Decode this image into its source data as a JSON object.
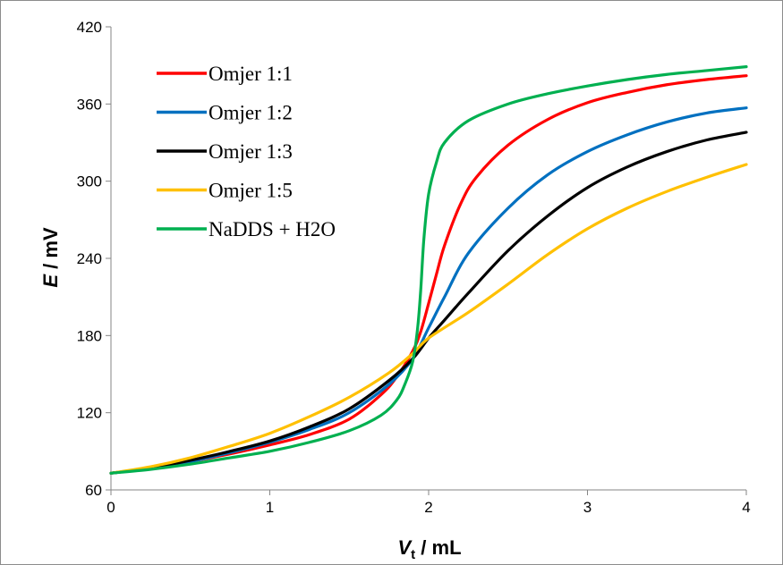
{
  "chart_data": {
    "type": "line",
    "xlabel": {
      "main": "V",
      "sub": "t",
      "unit": " / mL"
    },
    "ylabel": {
      "main": "E",
      "unit": " / mV"
    },
    "xlim": [
      0,
      4
    ],
    "ylim": [
      60,
      420
    ],
    "xticks": [
      0,
      1,
      2,
      3,
      4
    ],
    "yticks": [
      60,
      120,
      180,
      240,
      300,
      360,
      420
    ],
    "grid": false,
    "legend_position": "top-left",
    "series": [
      {
        "name": "Omjer 1:1",
        "color": "#ff0000",
        "points": [
          [
            0,
            73
          ],
          [
            0.25,
            77
          ],
          [
            0.5,
            82
          ],
          [
            0.75,
            88
          ],
          [
            1,
            95
          ],
          [
            1.25,
            103
          ],
          [
            1.5,
            115
          ],
          [
            1.7,
            134
          ],
          [
            1.8,
            148
          ],
          [
            1.9,
            168
          ],
          [
            1.95,
            183
          ],
          [
            2.0,
            205
          ],
          [
            2.05,
            228
          ],
          [
            2.1,
            250
          ],
          [
            2.2,
            282
          ],
          [
            2.3,
            303
          ],
          [
            2.5,
            328
          ],
          [
            2.75,
            348
          ],
          [
            3.0,
            361
          ],
          [
            3.25,
            369
          ],
          [
            3.5,
            375
          ],
          [
            3.75,
            379
          ],
          [
            4.0,
            382
          ]
        ]
      },
      {
        "name": "Omjer 1:2",
        "color": "#0070c0",
        "points": [
          [
            0,
            73
          ],
          [
            0.25,
            77
          ],
          [
            0.5,
            82
          ],
          [
            0.75,
            89
          ],
          [
            1,
            97
          ],
          [
            1.25,
            107
          ],
          [
            1.5,
            120
          ],
          [
            1.75,
            142
          ],
          [
            1.9,
            162
          ],
          [
            2.0,
            186
          ],
          [
            2.1,
            210
          ],
          [
            2.25,
            244
          ],
          [
            2.5,
            279
          ],
          [
            2.75,
            305
          ],
          [
            3.0,
            323
          ],
          [
            3.25,
            336
          ],
          [
            3.5,
            346
          ],
          [
            3.75,
            353
          ],
          [
            4.0,
            357
          ]
        ]
      },
      {
        "name": "Omjer 1:3",
        "color": "#000000",
        "points": [
          [
            0,
            73
          ],
          [
            0.25,
            77
          ],
          [
            0.5,
            83
          ],
          [
            0.75,
            90
          ],
          [
            1,
            98
          ],
          [
            1.25,
            109
          ],
          [
            1.5,
            123
          ],
          [
            1.75,
            145
          ],
          [
            1.9,
            162
          ],
          [
            2.0,
            178
          ],
          [
            2.1,
            192
          ],
          [
            2.25,
            213
          ],
          [
            2.5,
            246
          ],
          [
            2.75,
            273
          ],
          [
            3.0,
            295
          ],
          [
            3.25,
            311
          ],
          [
            3.5,
            323
          ],
          [
            3.75,
            332
          ],
          [
            4.0,
            338
          ]
        ]
      },
      {
        "name": "Omjer 1:5",
        "color": "#ffc000",
        "points": [
          [
            0,
            73
          ],
          [
            0.25,
            78
          ],
          [
            0.5,
            85
          ],
          [
            0.75,
            94
          ],
          [
            1,
            104
          ],
          [
            1.25,
            117
          ],
          [
            1.5,
            132
          ],
          [
            1.75,
            151
          ],
          [
            1.9,
            166
          ],
          [
            2.0,
            178
          ],
          [
            2.25,
            198
          ],
          [
            2.5,
            220
          ],
          [
            2.75,
            243
          ],
          [
            3.0,
            263
          ],
          [
            3.25,
            279
          ],
          [
            3.5,
            292
          ],
          [
            3.75,
            303
          ],
          [
            4.0,
            313
          ]
        ]
      },
      {
        "name": "NaDDS + H2O",
        "color": "#00b050",
        "points": [
          [
            0,
            73
          ],
          [
            0.25,
            76
          ],
          [
            0.5,
            80
          ],
          [
            0.75,
            85
          ],
          [
            1,
            90
          ],
          [
            1.25,
            97
          ],
          [
            1.5,
            106
          ],
          [
            1.7,
            118
          ],
          [
            1.8,
            130
          ],
          [
            1.85,
            142
          ],
          [
            1.9,
            160
          ],
          [
            1.93,
            185
          ],
          [
            1.95,
            215
          ],
          [
            1.97,
            255
          ],
          [
            2.0,
            290
          ],
          [
            2.05,
            315
          ],
          [
            2.1,
            330
          ],
          [
            2.25,
            347
          ],
          [
            2.5,
            360
          ],
          [
            2.75,
            368
          ],
          [
            3.0,
            374
          ],
          [
            3.25,
            379
          ],
          [
            3.5,
            383
          ],
          [
            3.75,
            386
          ],
          [
            4.0,
            389
          ]
        ]
      }
    ]
  }
}
